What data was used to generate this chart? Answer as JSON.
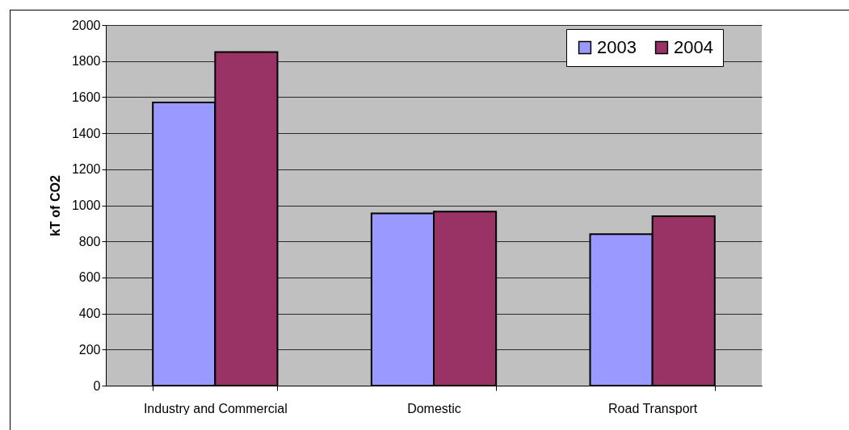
{
  "chart_data": {
    "type": "bar",
    "ylabel": "kT of CO2",
    "categories": [
      "Industry and Commercial",
      "Domestic",
      "Road Transport"
    ],
    "series": [
      {
        "name": "2003",
        "color": "#9999ff",
        "values": [
          1570,
          955,
          840
        ]
      },
      {
        "name": "2004",
        "color": "#993366",
        "values": [
          1850,
          965,
          940
        ]
      }
    ],
    "ylim": [
      0,
      2000
    ],
    "yticks": [
      0,
      200,
      400,
      600,
      800,
      1000,
      1200,
      1400,
      1600,
      1800,
      2000
    ],
    "grid": "y",
    "legend": "top right"
  }
}
